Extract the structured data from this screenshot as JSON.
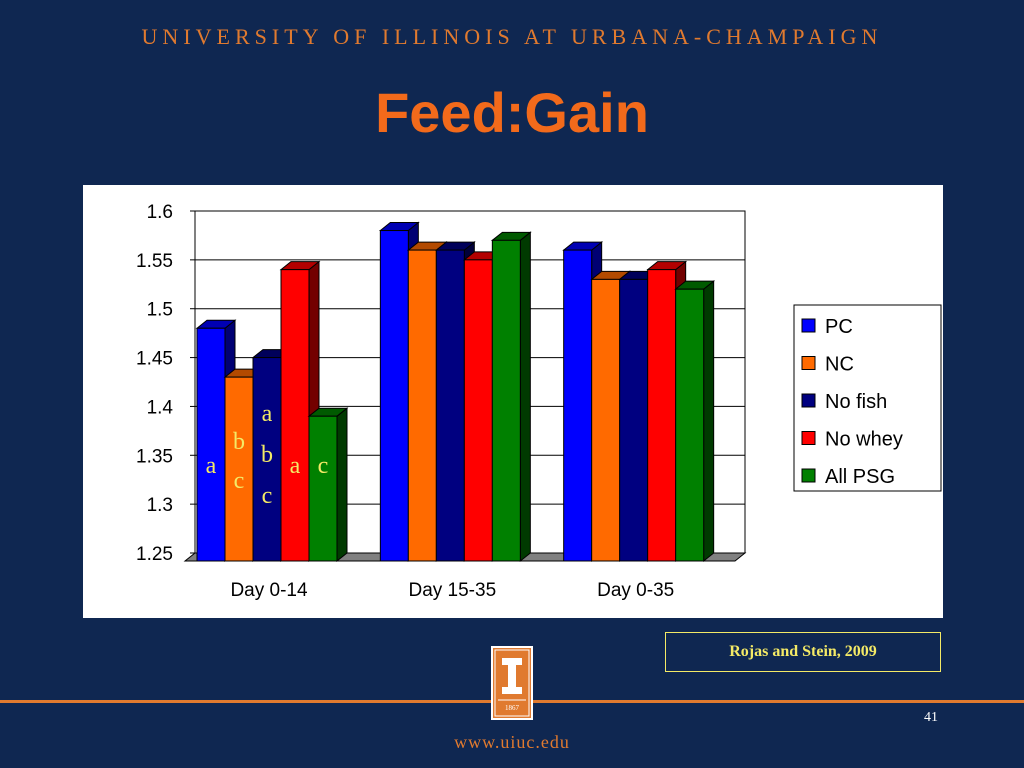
{
  "slide": {
    "header": "UNIVERSITY OF ILLINOIS AT URBANA-CHAMPAIGN",
    "title": "Feed:Gain",
    "citation": "Rojas and Stein, 2009",
    "page_number": "41",
    "footer_url": "www.uiuc.edu",
    "logo_year": "1867",
    "logo_letter": "I"
  },
  "colors": {
    "background": "#0f2751",
    "title": "#f26a1b",
    "header": "#e07a2f",
    "citation": "#f4ea66",
    "letters": "#f4ea66"
  },
  "chart_data": {
    "type": "bar",
    "title": "",
    "xlabel": "",
    "ylabel": "",
    "categories": [
      "Day 0-14",
      "Day 15-35",
      "Day 0-35"
    ],
    "series": [
      {
        "name": "PC",
        "color": "#0000ff",
        "values": [
          1.48,
          1.58,
          1.56
        ]
      },
      {
        "name": "NC",
        "color": "#ff6a00",
        "values": [
          1.43,
          1.56,
          1.53
        ]
      },
      {
        "name": "No fish",
        "color": "#000080",
        "values": [
          1.45,
          1.56,
          1.53
        ]
      },
      {
        "name": "No whey",
        "color": "#ff0000",
        "values": [
          1.54,
          1.55,
          1.54
        ]
      },
      {
        "name": "All PSG",
        "color": "#008000",
        "values": [
          1.39,
          1.57,
          1.52
        ]
      }
    ],
    "ylim": [
      1.25,
      1.6
    ],
    "yticks": [
      "1.6",
      "1.55",
      "1.5",
      "1.45",
      "1.4",
      "1.35",
      "1.3",
      "1.25"
    ],
    "grid": true,
    "legend_position": "right",
    "significance_letters": [
      {
        "category": "Day 0-14",
        "series": "PC",
        "lines": [
          "a"
        ]
      },
      {
        "category": "Day 0-14",
        "series": "NC",
        "lines": [
          "b",
          "c"
        ]
      },
      {
        "category": "Day 0-14",
        "series": "No fish",
        "lines": [
          "a",
          "b",
          "c"
        ]
      },
      {
        "category": "Day 0-14",
        "series": "No whey",
        "lines": [
          "a"
        ]
      },
      {
        "category": "Day 0-14",
        "series": "All PSG",
        "lines": [
          "c"
        ]
      }
    ]
  }
}
